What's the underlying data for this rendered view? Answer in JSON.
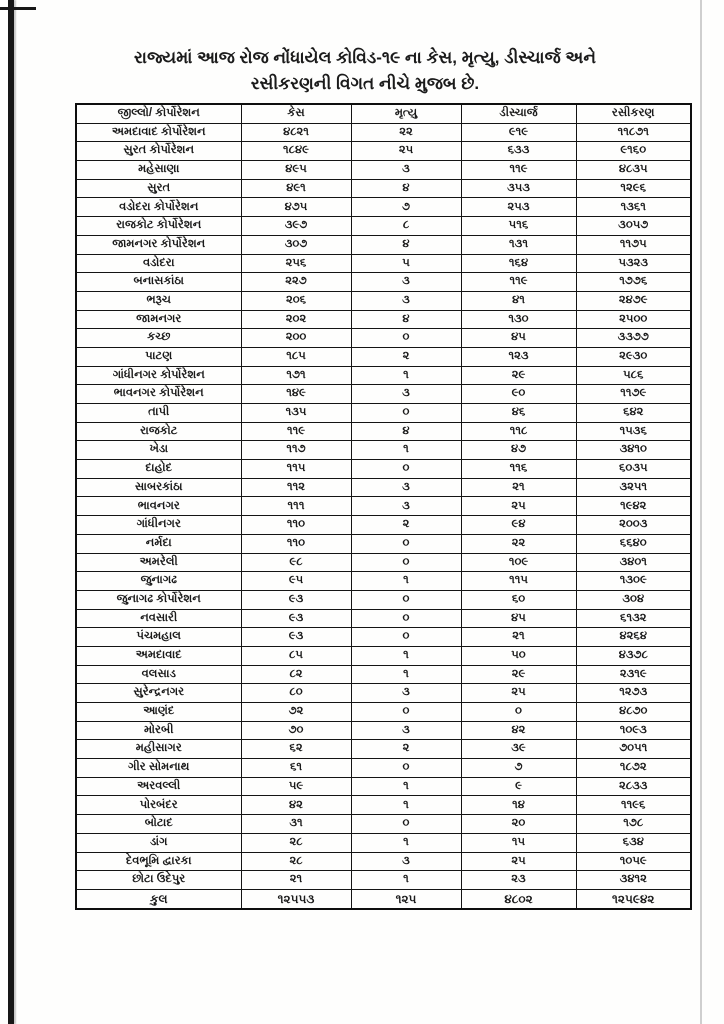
{
  "page": {
    "title_line1": "રાજ્યમાં આજ રોજ નોંધાયેલ કોવિડ-૧૯ ના કેસ, મૃત્યુ, ડીસ્ચાર્જ અને",
    "title_line2": "રસીકરણની વિગત નીચે મુજબ છે.",
    "text_color": "#1b1b1b",
    "border_color": "#141414",
    "background_color": "#fefefd"
  },
  "table": {
    "headers": [
      "જીલ્લો/ કોર્પોરેશન",
      "કેસ",
      "મૃત્યુ",
      "ડીસ્ચાર્જ",
      "રસીકરણ"
    ],
    "rows": [
      {
        "district": "અમદાવાદ કોર્પોરેશન",
        "cases": "૪૮૨૧",
        "deaths": "૨૨",
        "discharge": "૯૧૯",
        "vaccination": "૧૧૮૭૧"
      },
      {
        "district": "સુરત કોર્પોરેશન",
        "cases": "૧૮૪૯",
        "deaths": "૨૫",
        "discharge": "૬૩૩",
        "vaccination": "૯૧૬૦"
      },
      {
        "district": "મહેસાણા",
        "cases": "૪૯૫",
        "deaths": "૩",
        "discharge": "૧૧૯",
        "vaccination": "૪૮૩૫"
      },
      {
        "district": "સુરત",
        "cases": "૪૯૧",
        "deaths": "૪",
        "discharge": "૩૫૩",
        "vaccination": "૧૨૯૬"
      },
      {
        "district": "વડોદરા કોર્પોરેશન",
        "cases": "૪૭૫",
        "deaths": "૭",
        "discharge": "૨૫૩",
        "vaccination": "૧૩૬૧"
      },
      {
        "district": "રાજકોટ કોર્પોરેશન",
        "cases": "૩૯૭",
        "deaths": "૮",
        "discharge": "૫૧૬",
        "vaccination": "૩૦૫૭"
      },
      {
        "district": "જામનગર કોર્પોરેશન",
        "cases": "૩૦૭",
        "deaths": "૪",
        "discharge": "૧૩૧",
        "vaccination": "૧૧૭૫"
      },
      {
        "district": "વડોદરા",
        "cases": "૨૫૬",
        "deaths": "૫",
        "discharge": "૧૬૪",
        "vaccination": "૫૩૨૩"
      },
      {
        "district": "બનાસકાંઠા",
        "cases": "૨૨૭",
        "deaths": "૩",
        "discharge": "૧૧૯",
        "vaccination": "૧૭૭૬"
      },
      {
        "district": "ભરૂચ",
        "cases": "૨૦૬",
        "deaths": "૩",
        "discharge": "૪૧",
        "vaccination": "૨૪૭૯"
      },
      {
        "district": "જામનગર",
        "cases": "૨૦૨",
        "deaths": "૪",
        "discharge": "૧૩૦",
        "vaccination": "૨૫૦૦"
      },
      {
        "district": "કચ્છ",
        "cases": "૨૦૦",
        "deaths": "૦",
        "discharge": "૪૫",
        "vaccination": "૩૩૭૭"
      },
      {
        "district": "પાટણ",
        "cases": "૧૮૫",
        "deaths": "૨",
        "discharge": "૧૨૩",
        "vaccination": "૨૯૩૦"
      },
      {
        "district": "ગાંધીનગર કોર્પોરેશન",
        "cases": "૧૭૧",
        "deaths": "૧",
        "discharge": "૨૯",
        "vaccination": "૫૮૬"
      },
      {
        "district": "ભાવનગર કોર્પોરેશન",
        "cases": "૧૪૯",
        "deaths": "૩",
        "discharge": "૯૦",
        "vaccination": "૧૧૭૯"
      },
      {
        "district": "તાપી",
        "cases": "૧૩૫",
        "deaths": "૦",
        "discharge": "૪૬",
        "vaccination": "૬૪૨"
      },
      {
        "district": "રાજકોટ",
        "cases": "૧૧૯",
        "deaths": "૪",
        "discharge": "૧૧૮",
        "vaccination": "૧૫૩૬"
      },
      {
        "district": "ખેડા",
        "cases": "૧૧૭",
        "deaths": "૧",
        "discharge": "૪૭",
        "vaccination": "૩૪૧૦"
      },
      {
        "district": "દાહોદ",
        "cases": "૧૧૫",
        "deaths": "૦",
        "discharge": "૧૧૬",
        "vaccination": "૬૦૩૫"
      },
      {
        "district": "સાબરકાંઠા",
        "cases": "૧૧૨",
        "deaths": "૩",
        "discharge": "૨૧",
        "vaccination": "૩૨૫૧"
      },
      {
        "district": "ભાવનગર",
        "cases": "૧૧૧",
        "deaths": "૩",
        "discharge": "૨૫",
        "vaccination": "૧૯૪૨"
      },
      {
        "district": "ગાંધીનગર",
        "cases": "૧૧૦",
        "deaths": "૨",
        "discharge": "૯૪",
        "vaccination": "૨૦૦૩"
      },
      {
        "district": "નર્મદા",
        "cases": "૧૧૦",
        "deaths": "૦",
        "discharge": "૨૨",
        "vaccination": "૬૬૪૦"
      },
      {
        "district": "અમરેલી",
        "cases": "૯૮",
        "deaths": "૦",
        "discharge": "૧૦૯",
        "vaccination": "૩૪૦૧"
      },
      {
        "district": "જુનાગઢ",
        "cases": "૯૫",
        "deaths": "૧",
        "discharge": "૧૧૫",
        "vaccination": "૧૩૦૯"
      },
      {
        "district": "જુનાગઢ કોર્પોરેશન",
        "cases": "૯૩",
        "deaths": "૦",
        "discharge": "૬૦",
        "vaccination": "૩૦૪"
      },
      {
        "district": "નવસારી",
        "cases": "૯૩",
        "deaths": "૦",
        "discharge": "૪૫",
        "vaccination": "૬૧૩૨"
      },
      {
        "district": "પંચમહાલ",
        "cases": "૯૩",
        "deaths": "૦",
        "discharge": "૨૧",
        "vaccination": "૪૨૬૪"
      },
      {
        "district": "અમદાવાદ",
        "cases": "૮૫",
        "deaths": "૧",
        "discharge": "૫૦",
        "vaccination": "૪૩૭૮"
      },
      {
        "district": "વલસાડ",
        "cases": "૮૨",
        "deaths": "૧",
        "discharge": "૨૯",
        "vaccination": "૨૩૧૯"
      },
      {
        "district": "સુરેન્દ્રનગર",
        "cases": "૮૦",
        "deaths": "૩",
        "discharge": "૨૫",
        "vaccination": "૧૨૭૩"
      },
      {
        "district": "આણંદ",
        "cases": "૭૨",
        "deaths": "૦",
        "discharge": "૦",
        "vaccination": "૪૮૭૦"
      },
      {
        "district": "મોરબી",
        "cases": "૭૦",
        "deaths": "૩",
        "discharge": "૪૨",
        "vaccination": "૧૦૯૩"
      },
      {
        "district": "મહીસાગર",
        "cases": "૬૨",
        "deaths": "૨",
        "discharge": "૩૯",
        "vaccination": "૭૦૫૧"
      },
      {
        "district": "ગીર સોમનાથ",
        "cases": "૬૧",
        "deaths": "૦",
        "discharge": "૭",
        "vaccination": "૧૮૭૨"
      },
      {
        "district": "અરવલ્લી",
        "cases": "૫૯",
        "deaths": "૧",
        "discharge": "૯",
        "vaccination": "૨૮૩૩"
      },
      {
        "district": "પોરબંદર",
        "cases": "૪૨",
        "deaths": "૧",
        "discharge": "૧૪",
        "vaccination": "૧૧૯૬"
      },
      {
        "district": "બોટાદ",
        "cases": "૩૧",
        "deaths": "૦",
        "discharge": "૨૦",
        "vaccination": "૧૭૮"
      },
      {
        "district": "ડાંગ",
        "cases": "૨૮",
        "deaths": "૧",
        "discharge": "૧૫",
        "vaccination": "૬૩૪"
      },
      {
        "district": "દેવભૂમિ દ્વારકા",
        "cases": "૨૮",
        "deaths": "૩",
        "discharge": "૨૫",
        "vaccination": "૧૦૫૯"
      },
      {
        "district": "છોટા ઉદેપુર",
        "cases": "૨૧",
        "deaths": "૧",
        "discharge": "૨૩",
        "vaccination": "૩૪૧૨"
      }
    ],
    "total_row": {
      "district": "કુલ",
      "cases": "૧૨૫૫૩",
      "deaths": "૧૨૫",
      "discharge": "૪૮૦૨",
      "vaccination": "૧૨૫૯૪૨"
    }
  }
}
